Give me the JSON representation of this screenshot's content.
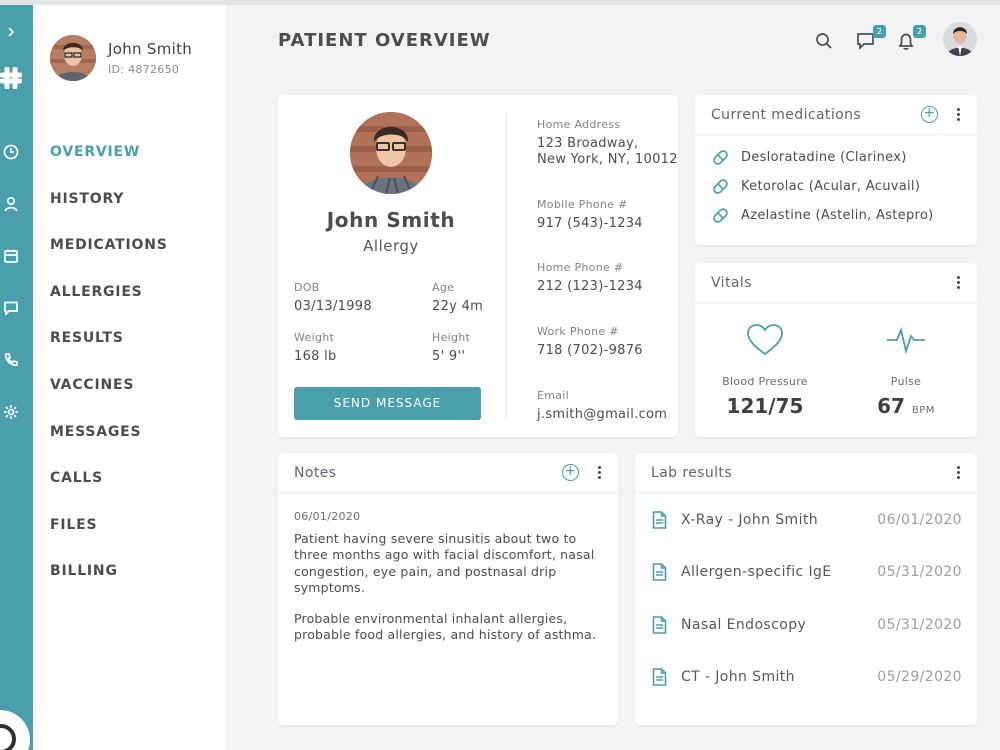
{
  "sidebar": {
    "profile": {
      "name": "John Smith",
      "id": "ID: 4872650"
    },
    "nav": [
      "OVERVIEW",
      "HISTORY",
      "MEDICATIONS",
      "ALLERGIES",
      "RESULTS",
      "VACCINES",
      "MESSAGES",
      "CALLS",
      "FILES",
      "BILLING"
    ],
    "active_item": "OVERVIEW"
  },
  "rail_icons": [
    "chevron-right-icon",
    "app-logo-icon",
    "clock-icon",
    "user-icon",
    "calendar-icon",
    "chat-icon",
    "phone-icon",
    "gear-icon"
  ],
  "header": {
    "title": "PATIENT OVERVIEW",
    "messages_badge": "2",
    "notifications_badge": "2"
  },
  "patient": {
    "name": "John Smith",
    "condition": "Allergy",
    "dob": {
      "label": "DOB",
      "value": "03/13/1998"
    },
    "age": {
      "label": "Age",
      "value": "22y 4m"
    },
    "weight": {
      "label": "Weight",
      "value": "168 lb"
    },
    "height": {
      "label": "Height",
      "value": "5' 9''"
    },
    "send_button": "SEND MESSAGE",
    "home_address": {
      "label": "Home Address",
      "line1": "123 Broadway,",
      "line2": "New York, NY, 10012"
    },
    "mobile_phone": {
      "label": "Mobile Phone #",
      "value": "917 (543)-1234"
    },
    "home_phone": {
      "label": "Home Phone #",
      "value": "212 (123)-1234"
    },
    "work_phone": {
      "label": "Work Phone #",
      "value": "718 (702)-9876"
    },
    "email": {
      "label": "Email",
      "value": "j.smith@gmail.com"
    }
  },
  "medications": {
    "title": "Current medications",
    "items": [
      "Desloratadine (Clarinex)",
      "Ketorolac (Acular, Acuvail)",
      "Azelastine (Astelin, Astepro)"
    ]
  },
  "vitals": {
    "title": "Vitals",
    "blood_pressure": {
      "label": "Blood Pressure",
      "value": "121/75"
    },
    "pulse": {
      "label": "Pulse",
      "value": "67",
      "unit": "BPM"
    }
  },
  "notes": {
    "title": "Notes",
    "date": "06/01/2020",
    "paragraph1": "Patient having severe sinusitis about two to three months ago with facial discomfort, nasal congestion, eye pain, and postnasal drip symptoms.",
    "paragraph2": "Probable environmental inhalant allergies, probable food allergies, and history of asthma."
  },
  "lab_results": {
    "title": "Lab results",
    "items": [
      {
        "name": "X-Ray - John Smith",
        "date": "06/01/2020"
      },
      {
        "name": "Allergen-specific IgE",
        "date": "05/31/2020"
      },
      {
        "name": "Nasal Endoscopy",
        "date": "05/31/2020"
      },
      {
        "name": "CT - John Smith",
        "date": "05/29/2020"
      }
    ]
  },
  "colors": {
    "accent": "#4a9fad",
    "background": "#f2f3f5",
    "text": "#4a4d53"
  }
}
